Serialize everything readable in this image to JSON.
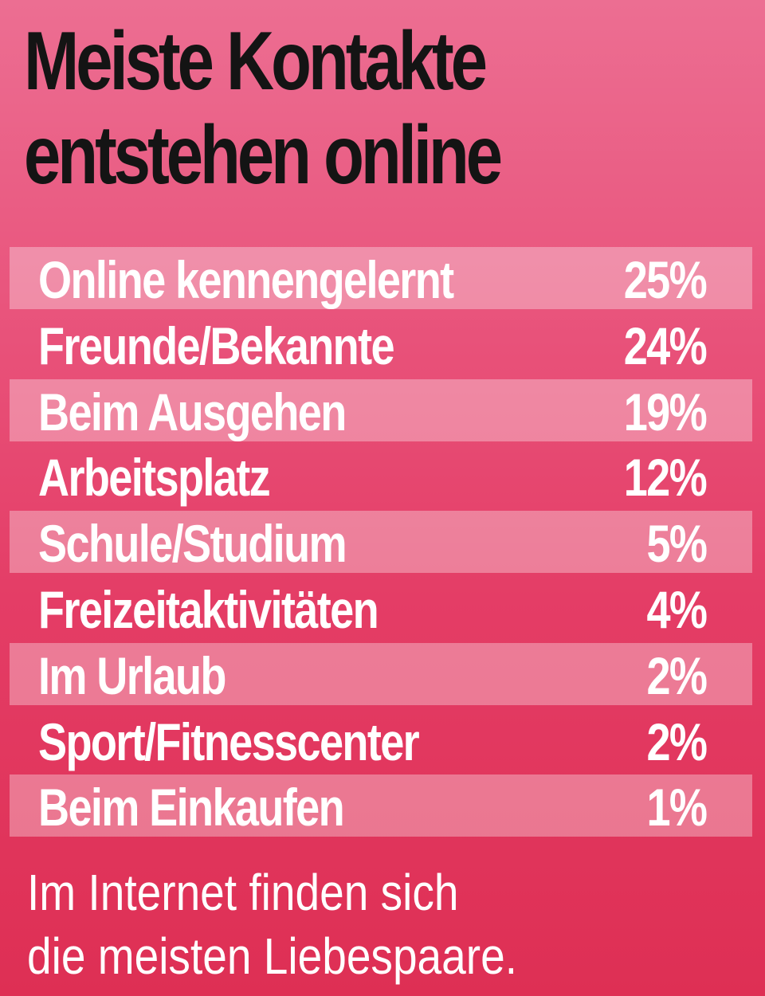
{
  "title_lines": [
    "Meiste Kontakte",
    "entstehen online"
  ],
  "caption_lines": [
    "Im Internet finden sich",
    "die meisten Liebespaare."
  ],
  "colors": {
    "background_top": "#ec6e92",
    "background_bottom": "#de2f54",
    "title": "#141414",
    "text": "#ffffff"
  },
  "chart_data": {
    "type": "table",
    "title": "Meiste Kontakte entstehen online",
    "unit": "%",
    "rows": [
      {
        "category": "Online kennengelernt",
        "value": 25,
        "display": "25%"
      },
      {
        "category": "Freunde/Bekannte",
        "value": 24,
        "display": "24%"
      },
      {
        "category": "Beim Ausgehen",
        "value": 19,
        "display": "19%"
      },
      {
        "category": "Arbeitsplatz",
        "value": 12,
        "display": "12%"
      },
      {
        "category": "Schule/Studium",
        "value": 5,
        "display": "5%"
      },
      {
        "category": "Freizeitaktivitäten",
        "value": 4,
        "display": "4%"
      },
      {
        "category": "Im Urlaub",
        "value": 2,
        "display": "2%"
      },
      {
        "category": "Sport/Fitnesscenter",
        "value": 2,
        "display": "2%"
      },
      {
        "category": "Beim Einkaufen",
        "value": 1,
        "display": "1%"
      }
    ]
  }
}
